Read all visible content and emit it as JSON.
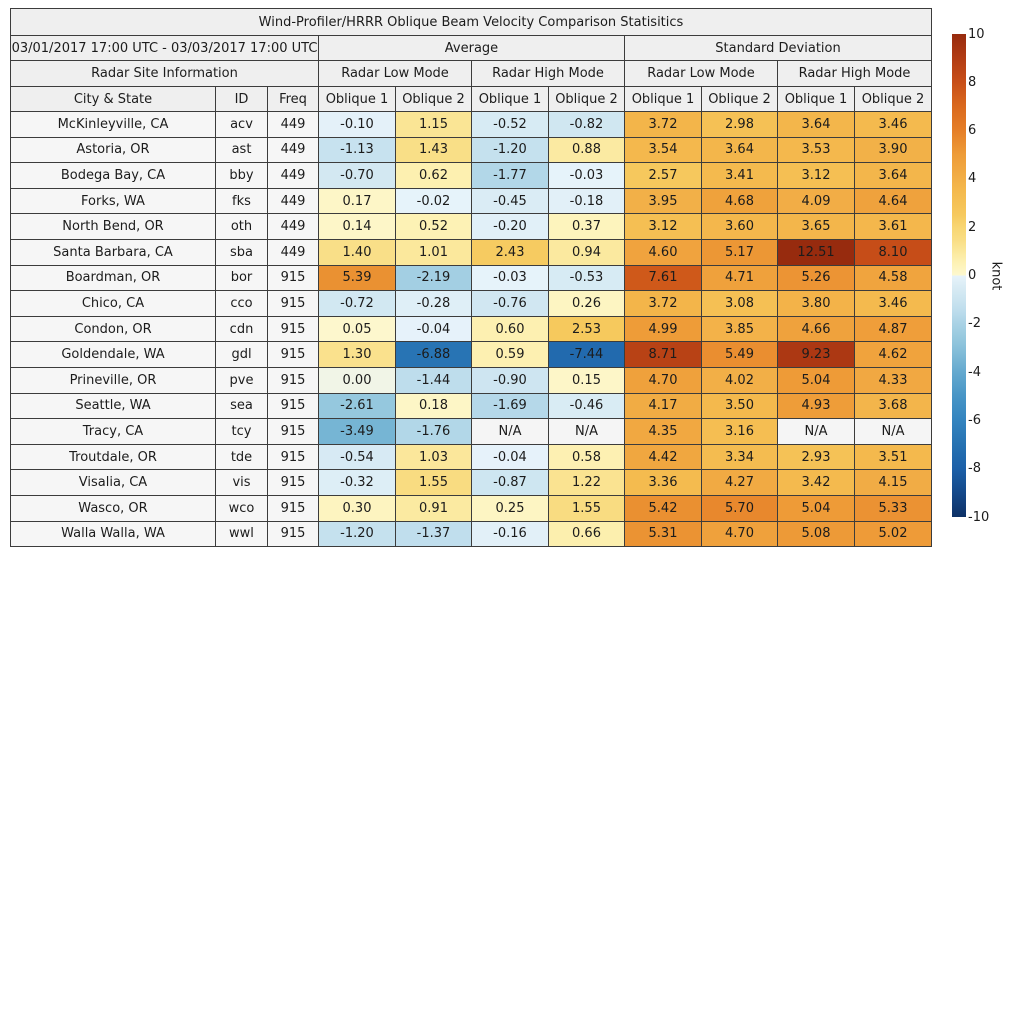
{
  "title": "Wind-Profiler/HRRR Oblique Beam Velocity Comparison Statisitics",
  "header": {
    "date_range": "03/01/2017 17:00 UTC - 03/03/2017 17:00 UTC",
    "group_average": "Average",
    "group_stddev": "Standard Deviation",
    "site_info": "Radar Site Information",
    "mode_headers": [
      "Radar Low Mode",
      "Radar High Mode",
      "Radar Low Mode",
      "Radar High Mode"
    ],
    "col_city": "City & State",
    "col_id": "ID",
    "col_freq": "Freq",
    "oblique1": "Oblique 1",
    "oblique2": "Oblique 2"
  },
  "colors": {
    "border": "#3c3c3c",
    "header_bg": "#efefef",
    "label_bg": "#f6f6f6",
    "na_bg": "#f5f5f5",
    "text": "#1c1c1c"
  },
  "colorbar": {
    "unit_label": "knot",
    "ticks": [
      10,
      8,
      6,
      4,
      2,
      0,
      -2,
      -4,
      -6,
      -8,
      -10
    ],
    "vmin": -10,
    "vmax": 10,
    "stops": [
      {
        "v": 10.0,
        "c": "#972b0e"
      },
      {
        "v": 9.0,
        "c": "#b23c14"
      },
      {
        "v": 8.0,
        "c": "#c84f18"
      },
      {
        "v": 7.0,
        "c": "#da691e"
      },
      {
        "v": 6.0,
        "c": "#e57f28"
      },
      {
        "v": 5.0,
        "c": "#ee9c38"
      },
      {
        "v": 4.5,
        "c": "#f0a53f"
      },
      {
        "v": 4.0,
        "c": "#f2af47"
      },
      {
        "v": 3.5,
        "c": "#f4b94d"
      },
      {
        "v": 3.0,
        "c": "#f5c155"
      },
      {
        "v": 2.5,
        "c": "#f6c95e"
      },
      {
        "v": 2.0,
        "c": "#f8d672"
      },
      {
        "v": 1.5,
        "c": "#f9dd83"
      },
      {
        "v": 1.0,
        "c": "#fbe89c"
      },
      {
        "v": 0.5,
        "c": "#fdf2b6"
      },
      {
        "v": 0.001,
        "c": "#fdf8cf"
      },
      {
        "v": -0.001,
        "c": "#e7f3fa"
      },
      {
        "v": -0.5,
        "c": "#d8ebf4"
      },
      {
        "v": -1.0,
        "c": "#cbe4f0"
      },
      {
        "v": -1.5,
        "c": "#bcdcec"
      },
      {
        "v": -2.0,
        "c": "#a9d2e5"
      },
      {
        "v": -2.5,
        "c": "#99cadf"
      },
      {
        "v": -3.0,
        "c": "#88c0da"
      },
      {
        "v": -3.5,
        "c": "#76b5d4"
      },
      {
        "v": -4.0,
        "c": "#64a9cf"
      },
      {
        "v": -5.0,
        "c": "#4795c6"
      },
      {
        "v": -6.0,
        "c": "#3384bf"
      },
      {
        "v": -7.0,
        "c": "#2672b2"
      },
      {
        "v": -8.0,
        "c": "#1c60a8"
      },
      {
        "v": -9.0,
        "c": "#14498a"
      },
      {
        "v": -10.0,
        "c": "#0e3166"
      }
    ]
  },
  "chart_data": {
    "type": "heatmap-table",
    "unit": "knot",
    "value_range": [
      -10,
      10
    ],
    "value_columns": [
      "Average / Radar Low Mode / Oblique 1",
      "Average / Radar Low Mode / Oblique 2",
      "Average / Radar High Mode / Oblique 1",
      "Average / Radar High Mode / Oblique 2",
      "Standard Deviation / Radar Low Mode / Oblique 1",
      "Standard Deviation / Radar Low Mode / Oblique 2",
      "Standard Deviation / Radar High Mode / Oblique 1",
      "Standard Deviation / Radar High Mode / Oblique 2"
    ],
    "rows": [
      {
        "city": "McKinleyville, CA",
        "id": "acv",
        "freq": "449",
        "values": [
          "-0.10",
          "1.15",
          "-0.52",
          "-0.82",
          "3.72",
          "2.98",
          "3.64",
          "3.46"
        ]
      },
      {
        "city": "Astoria, OR",
        "id": "ast",
        "freq": "449",
        "values": [
          "-1.13",
          "1.43",
          "-1.20",
          "0.88",
          "3.54",
          "3.64",
          "3.53",
          "3.90"
        ]
      },
      {
        "city": "Bodega Bay, CA",
        "id": "bby",
        "freq": "449",
        "values": [
          "-0.70",
          "0.62",
          "-1.77",
          "-0.03",
          "2.57",
          "3.41",
          "3.12",
          "3.64"
        ]
      },
      {
        "city": "Forks, WA",
        "id": "fks",
        "freq": "449",
        "values": [
          "0.17",
          "-0.02",
          "-0.45",
          "-0.18",
          "3.95",
          "4.68",
          "4.09",
          "4.64"
        ]
      },
      {
        "city": "North Bend, OR",
        "id": "oth",
        "freq": "449",
        "values": [
          "0.14",
          "0.52",
          "-0.20",
          "0.37",
          "3.12",
          "3.60",
          "3.65",
          "3.61"
        ]
      },
      {
        "city": "Santa Barbara, CA",
        "id": "sba",
        "freq": "449",
        "values": [
          "1.40",
          "1.01",
          "2.43",
          "0.94",
          "4.60",
          "5.17",
          "12.51",
          "8.10"
        ]
      },
      {
        "city": "Boardman, OR",
        "id": "bor",
        "freq": "915",
        "values": [
          "5.39",
          "-2.19",
          "-0.03",
          "-0.53",
          "7.61",
          "4.71",
          "5.26",
          "4.58"
        ]
      },
      {
        "city": "Chico, CA",
        "id": "cco",
        "freq": "915",
        "values": [
          "-0.72",
          "-0.28",
          "-0.76",
          "0.26",
          "3.72",
          "3.08",
          "3.80",
          "3.46"
        ]
      },
      {
        "city": "Condon, OR",
        "id": "cdn",
        "freq": "915",
        "values": [
          "0.05",
          "-0.04",
          "0.60",
          "2.53",
          "4.99",
          "3.85",
          "4.66",
          "4.87"
        ]
      },
      {
        "city": "Goldendale, WA",
        "id": "gdl",
        "freq": "915",
        "values": [
          "1.30",
          "-6.88",
          "0.59",
          "-7.44",
          "8.71",
          "5.49",
          "9.23",
          "4.62"
        ]
      },
      {
        "city": "Prineville, OR",
        "id": "pve",
        "freq": "915",
        "values": [
          "0.00",
          "-1.44",
          "-0.90",
          "0.15",
          "4.70",
          "4.02",
          "5.04",
          "4.33"
        ]
      },
      {
        "city": "Seattle, WA",
        "id": "sea",
        "freq": "915",
        "values": [
          "-2.61",
          "0.18",
          "-1.69",
          "-0.46",
          "4.17",
          "3.50",
          "4.93",
          "3.68"
        ]
      },
      {
        "city": "Tracy, CA",
        "id": "tcy",
        "freq": "915",
        "values": [
          "-3.49",
          "-1.76",
          "N/A",
          "N/A",
          "4.35",
          "3.16",
          "N/A",
          "N/A"
        ]
      },
      {
        "city": "Troutdale, OR",
        "id": "tde",
        "freq": "915",
        "values": [
          "-0.54",
          "1.03",
          "-0.04",
          "0.58",
          "4.42",
          "3.34",
          "2.93",
          "3.51"
        ]
      },
      {
        "city": "Visalia, CA",
        "id": "vis",
        "freq": "915",
        "values": [
          "-0.32",
          "1.55",
          "-0.87",
          "1.22",
          "3.36",
          "4.27",
          "3.42",
          "4.15"
        ]
      },
      {
        "city": "Wasco, OR",
        "id": "wco",
        "freq": "915",
        "values": [
          "0.30",
          "0.91",
          "0.25",
          "1.55",
          "5.42",
          "5.70",
          "5.04",
          "5.33"
        ]
      },
      {
        "city": "Walla Walla, WA",
        "id": "wwl",
        "freq": "915",
        "values": [
          "-1.20",
          "-1.37",
          "-0.16",
          "0.66",
          "5.31",
          "4.70",
          "5.08",
          "5.02"
        ]
      }
    ]
  }
}
